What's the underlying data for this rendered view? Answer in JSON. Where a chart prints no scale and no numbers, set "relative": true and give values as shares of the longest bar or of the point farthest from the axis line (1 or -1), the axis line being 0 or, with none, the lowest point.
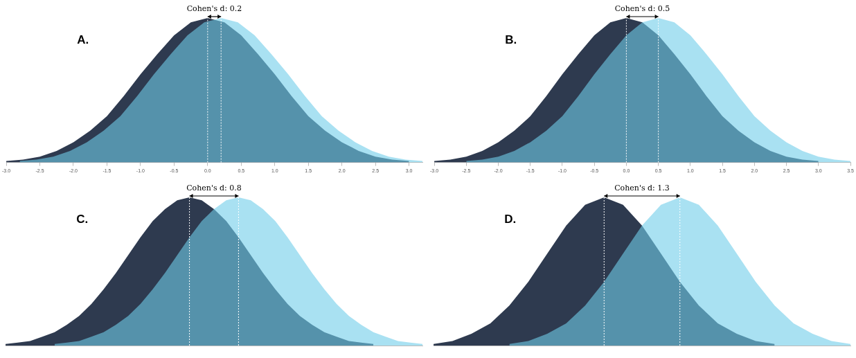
{
  "chart_data": [
    {
      "type": "area",
      "relative": true,
      "grid": false,
      "legend": false,
      "marker": "none",
      "xlim": [
        -3,
        3.2
      ],
      "xticks": [
        {
          "value": -3,
          "label": "-3.0"
        },
        {
          "value": -2.5,
          "label": "-2.5"
        },
        {
          "value": -2,
          "label": "-2.0"
        },
        {
          "value": -1.5,
          "label": "-1.5"
        },
        {
          "value": -1,
          "label": "-1.0"
        },
        {
          "value": -0.5,
          "label": "-0.5"
        },
        {
          "value": 0,
          "label": "0.0"
        },
        {
          "value": 0.5,
          "label": "0.5"
        },
        {
          "value": 1,
          "label": "1.0"
        },
        {
          "value": 1.5,
          "label": "1.5"
        },
        {
          "value": 2,
          "label": "2.0"
        },
        {
          "value": 2.5,
          "label": "2.5"
        },
        {
          "value": 3,
          "label": "3.0"
        }
      ],
      "series": [
        {
          "color": "#2e3a4f",
          "x": [
            -3,
            -2.75,
            -2.5,
            -2.25,
            -2,
            -1.75,
            -1.5,
            -1.25,
            -1,
            -0.75,
            -0.5,
            -0.25,
            0,
            0.25,
            0.5,
            0.75,
            1,
            1.25,
            1.5,
            1.75,
            2,
            2.25,
            2.5,
            2.75,
            3
          ],
          "values": [
            0.01,
            0.02,
            0.04,
            0.08,
            0.14,
            0.22,
            0.32,
            0.46,
            0.61,
            0.75,
            0.88,
            0.97,
            1,
            0.97,
            0.88,
            0.75,
            0.61,
            0.46,
            0.32,
            0.22,
            0.14,
            0.08,
            0.04,
            0.02,
            0.01
          ]
        },
        {
          "color": "#6fcdea",
          "x": [
            -2.8,
            -2.55,
            -2.3,
            -2.05,
            -1.8,
            -1.55,
            -1.3,
            -1.05,
            -0.8,
            -0.55,
            -0.3,
            -0.05,
            0.2,
            0.45,
            0.7,
            0.95,
            1.2,
            1.45,
            1.7,
            1.95,
            2.2,
            2.45,
            2.7,
            2.95,
            3.2
          ],
          "values": [
            0.01,
            0.02,
            0.04,
            0.08,
            0.14,
            0.22,
            0.32,
            0.46,
            0.61,
            0.75,
            0.88,
            0.97,
            1,
            0.97,
            0.88,
            0.75,
            0.61,
            0.46,
            0.32,
            0.22,
            0.14,
            0.08,
            0.04,
            0.02,
            0.01
          ]
        }
      ],
      "ref_lines": [
        {
          "axis": "x",
          "value": 0,
          "color": "#ffffff",
          "line_style": "dotted"
        },
        {
          "axis": "x",
          "value": 0.2,
          "color": "#ffffff",
          "line_style": "dotted"
        }
      ],
      "annotations": [
        "A.",
        "Cohen's d: 0.2"
      ]
    },
    {
      "type": "area",
      "relative": true,
      "grid": false,
      "legend": false,
      "marker": "none",
      "xlim": [
        -3,
        3.5
      ],
      "xticks": [
        {
          "value": -3,
          "label": "-3.0"
        },
        {
          "value": -2.5,
          "label": "-2.5"
        },
        {
          "value": -2,
          "label": "-2.0"
        },
        {
          "value": -1.5,
          "label": "-1.5"
        },
        {
          "value": -1,
          "label": "-1.0"
        },
        {
          "value": -0.5,
          "label": "-0.5"
        },
        {
          "value": 0,
          "label": "0.0"
        },
        {
          "value": 0.5,
          "label": "0.5"
        },
        {
          "value": 1,
          "label": "1.0"
        },
        {
          "value": 1.5,
          "label": "1.5"
        },
        {
          "value": 2,
          "label": "2.0"
        },
        {
          "value": 2.5,
          "label": "2.5"
        },
        {
          "value": 3,
          "label": "3.0"
        },
        {
          "value": 3.5,
          "label": "3.5"
        }
      ],
      "series": [
        {
          "color": "#2e3a4f",
          "x": [
            -3,
            -2.75,
            -2.5,
            -2.25,
            -2,
            -1.75,
            -1.5,
            -1.25,
            -1,
            -0.75,
            -0.5,
            -0.25,
            0,
            0.25,
            0.5,
            0.75,
            1,
            1.25,
            1.5,
            1.75,
            2,
            2.25,
            2.5,
            2.75,
            3
          ],
          "values": [
            0.01,
            0.02,
            0.04,
            0.08,
            0.14,
            0.22,
            0.32,
            0.46,
            0.61,
            0.75,
            0.88,
            0.97,
            1,
            0.97,
            0.88,
            0.75,
            0.61,
            0.46,
            0.32,
            0.22,
            0.14,
            0.08,
            0.04,
            0.02,
            0.01
          ]
        },
        {
          "color": "#6fcdea",
          "x": [
            -2.5,
            -2.25,
            -2,
            -1.75,
            -1.5,
            -1.25,
            -1,
            -0.75,
            -0.5,
            -0.25,
            0,
            0.25,
            0.5,
            0.75,
            1,
            1.25,
            1.5,
            1.75,
            2,
            2.25,
            2.5,
            2.75,
            3,
            3.25,
            3.5
          ],
          "values": [
            0.01,
            0.02,
            0.04,
            0.08,
            0.14,
            0.22,
            0.32,
            0.46,
            0.61,
            0.75,
            0.88,
            0.97,
            1,
            0.97,
            0.88,
            0.75,
            0.61,
            0.46,
            0.32,
            0.22,
            0.14,
            0.08,
            0.04,
            0.02,
            0.01
          ]
        }
      ],
      "ref_lines": [
        {
          "axis": "x",
          "value": 0,
          "color": "#ffffff",
          "line_style": "dotted"
        },
        {
          "axis": "x",
          "value": 0.5,
          "color": "#ffffff",
          "line_style": "dotted"
        }
      ],
      "annotations": [
        "B.",
        "Cohen's d: 0.5"
      ]
    },
    {
      "type": "area",
      "relative": true,
      "grid": false,
      "legend": false,
      "marker": "none",
      "tick_labels": false,
      "categories": [
        null,
        null,
        null,
        null,
        null,
        null,
        null,
        null,
        null,
        null,
        null,
        null,
        null,
        null,
        null,
        null,
        null,
        null,
        null,
        null,
        null,
        null,
        null,
        null,
        null,
        null,
        null,
        null,
        null,
        null,
        null,
        null,
        null,
        null,
        null
      ],
      "series": [
        {
          "color": "#2e3a4f",
          "values": [
            0.01,
            0.02,
            0.03,
            0.06,
            0.09,
            0.14,
            0.2,
            0.28,
            0.38,
            0.49,
            0.61,
            0.73,
            0.84,
            0.92,
            0.98,
            1,
            0.98,
            0.92,
            0.84,
            0.73,
            0.61,
            0.49,
            0.38,
            0.28,
            0.2,
            0.14,
            0.09,
            0.06,
            0.03,
            0.02,
            0.01,
            null,
            null,
            null,
            null
          ]
        },
        {
          "color": "#6fcdea",
          "values": [
            null,
            null,
            null,
            null,
            0.01,
            0.02,
            0.03,
            0.06,
            0.09,
            0.14,
            0.2,
            0.28,
            0.38,
            0.49,
            0.61,
            0.73,
            0.84,
            0.92,
            0.98,
            1,
            0.98,
            0.92,
            0.84,
            0.73,
            0.61,
            0.49,
            0.38,
            0.28,
            0.2,
            0.14,
            0.09,
            0.06,
            0.03,
            0.02,
            0.01
          ]
        }
      ],
      "annotations": [
        "C.",
        "Cohen's d: 0.8"
      ]
    },
    {
      "type": "area",
      "relative": true,
      "grid": false,
      "legend": false,
      "marker": "none",
      "tick_labels": false,
      "categories": [
        null,
        null,
        null,
        null,
        null,
        null,
        null,
        null,
        null,
        null,
        null,
        null,
        null,
        null,
        null,
        null,
        null,
        null,
        null,
        null,
        null,
        null,
        null
      ],
      "series": [
        {
          "color": "#2e3a4f",
          "values": [
            0.01,
            0.03,
            0.08,
            0.15,
            0.27,
            0.43,
            0.62,
            0.81,
            0.95,
            1,
            0.95,
            0.81,
            0.62,
            0.43,
            0.27,
            0.15,
            0.08,
            0.03,
            0.01,
            null,
            null,
            null,
            null
          ]
        },
        {
          "color": "#6fcdea",
          "values": [
            null,
            null,
            null,
            null,
            0.01,
            0.03,
            0.08,
            0.15,
            0.27,
            0.43,
            0.62,
            0.81,
            0.95,
            1,
            0.95,
            0.81,
            0.62,
            0.43,
            0.27,
            0.15,
            0.08,
            0.03,
            0.01
          ]
        }
      ],
      "annotations": [
        "D.",
        "Cohen's d: 1.3"
      ]
    }
  ]
}
